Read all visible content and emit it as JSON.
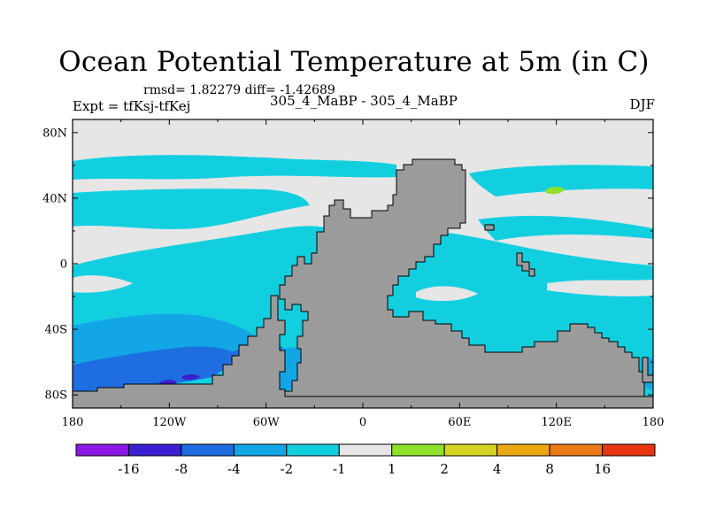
{
  "chart_data": {
    "type": "filled-contour-map",
    "title": "Ocean Potential Temperature at 5m (in C)",
    "stats_text": "rmsd= 1.82279  diff= -1.42689",
    "experiment_text": "Expt = tfKsj-tfKej",
    "cases_text": "305_4_MaBP - 305_4_MaBP",
    "season": "DJF",
    "x_axis": {
      "range": [
        -180,
        180
      ],
      "ticks": [
        {
          "value": -180,
          "label": "180"
        },
        {
          "value": -120,
          "label": "120W"
        },
        {
          "value": -60,
          "label": "60W"
        },
        {
          "value": 0,
          "label": "0"
        },
        {
          "value": 60,
          "label": "60E"
        },
        {
          "value": 120,
          "label": "120E"
        },
        {
          "value": 180,
          "label": "180"
        }
      ]
    },
    "y_axis": {
      "range": [
        -88,
        88
      ],
      "ticks": [
        {
          "value": 80,
          "label": "80N"
        },
        {
          "value": 40,
          "label": "40N"
        },
        {
          "value": 0,
          "label": "0"
        },
        {
          "value": -40,
          "label": "40S"
        },
        {
          "value": -80,
          "label": "80S"
        }
      ]
    },
    "colorbar": {
      "colors": [
        "#8d17e6",
        "#3a20d2",
        "#1e6ee2",
        "#12a6e6",
        "#12cfe0",
        "#e6e6e6",
        "#8fe02a",
        "#d5d322",
        "#eba712",
        "#eb7916",
        "#e8350f"
      ],
      "labels": [
        "-16",
        "-8",
        "-4",
        "-2",
        "-1",
        "1",
        "2",
        "4",
        "8",
        "16"
      ]
    },
    "colors": {
      "land": "#9b9b9b",
      "background_near_zero": "#e6e6e6",
      "band_neg1": "#12cfe0",
      "band_neg2": "#12a6e6",
      "band_neg4": "#1e6ee2",
      "band_neg8": "#3a20d2",
      "band_pos1": "#8fe02a"
    },
    "regions": [
      {
        "band": "-1..-2",
        "lon": [
          -180,
          180
        ],
        "lat": [
          -55,
          10
        ],
        "note": "broad cooling across southern/tropical oceans"
      },
      {
        "band": "-1..-2",
        "lon": [
          -180,
          0
        ],
        "lat": [
          52,
          65
        ],
        "note": "northern band cooling"
      },
      {
        "band": "-2..-4",
        "lon": [
          -180,
          -60
        ],
        "lat": [
          -75,
          -40
        ],
        "note": "southern Pacific cooling"
      },
      {
        "band": "-4..-8",
        "lon": [
          -180,
          -70
        ],
        "lat": [
          -85,
          -55
        ],
        "note": "strong cooling near Antarctic margin"
      },
      {
        "band": "-8..-16",
        "lon": [
          -135,
          -110
        ],
        "lat": [
          -82,
          -76
        ],
        "note": "localized very strong cooling"
      },
      {
        "band": "1..2",
        "lon": [
          120,
          130
        ],
        "lat": [
          37,
          43
        ],
        "note": "small warming patch"
      }
    ]
  }
}
